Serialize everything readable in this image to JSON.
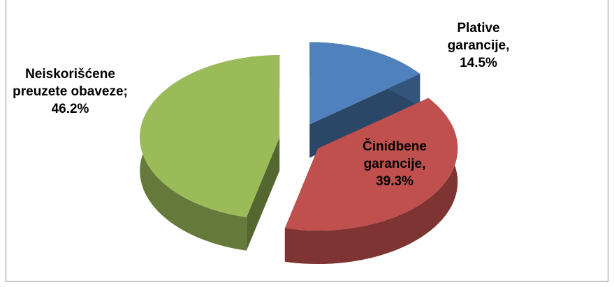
{
  "chart_data": {
    "type": "pie",
    "categories": [
      "Plative garancije,",
      "Činidbene garancije,",
      "Neiskorišćene preuzete obaveze;"
    ],
    "values": [
      14.5,
      39.3,
      46.2
    ],
    "value_labels": [
      "14.5%",
      "39.3%",
      "46.2%"
    ],
    "colors": [
      "#4f81bd",
      "#c0504d",
      "#9bbb59"
    ]
  }
}
